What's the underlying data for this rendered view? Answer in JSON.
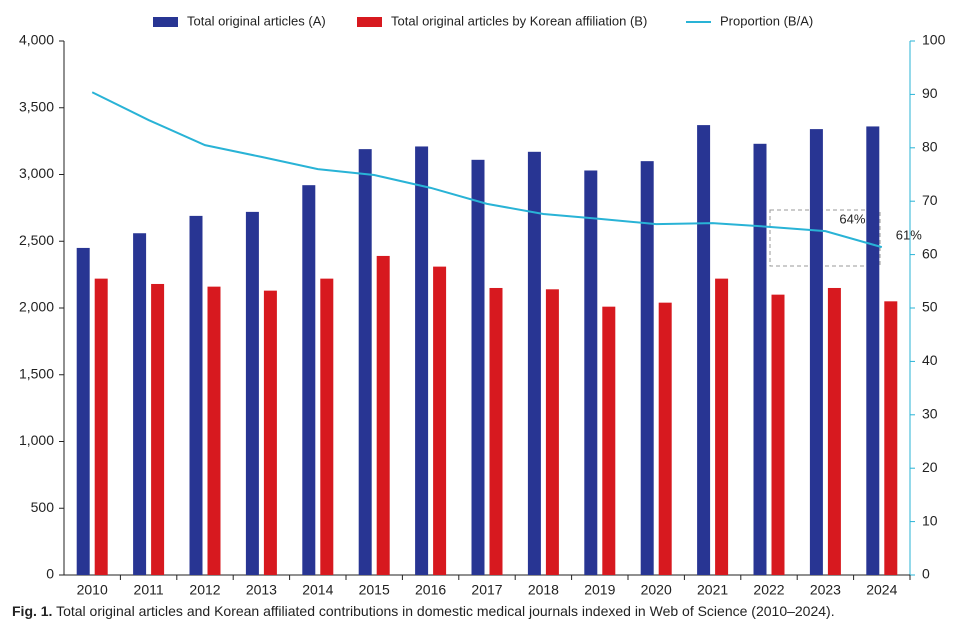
{
  "chart_data": {
    "type": "bar",
    "categories": [
      "2010",
      "2011",
      "2012",
      "2013",
      "2014",
      "2015",
      "2016",
      "2017",
      "2018",
      "2019",
      "2020",
      "2021",
      "2022",
      "2023",
      "2024"
    ],
    "series": [
      {
        "name": "Total original articles (A)",
        "type": "bar",
        "color": "#283593",
        "values": [
          2450,
          2560,
          2690,
          2720,
          2920,
          3190,
          3210,
          3110,
          3170,
          3030,
          3100,
          3370,
          3230,
          3340,
          3360
        ]
      },
      {
        "name": "Total original articles by Korean affiliation (B)",
        "type": "bar",
        "color": "#d7191f",
        "values": [
          2220,
          2180,
          2160,
          2130,
          2220,
          2390,
          2310,
          2150,
          2140,
          2010,
          2040,
          2220,
          2100,
          2150,
          2050
        ]
      },
      {
        "name": "Proportion (B/A)",
        "type": "line",
        "axis": "y2",
        "color": "#29b3d6",
        "values": [
          90.4,
          85.2,
          80.5,
          78.3,
          76.0,
          74.9,
          72.5,
          69.5,
          67.6,
          66.7,
          65.7,
          65.9,
          65.2,
          64.4,
          61.4
        ],
        "value_labels": [
          null,
          null,
          null,
          null,
          null,
          null,
          null,
          null,
          null,
          null,
          null,
          null,
          null,
          "64%",
          "61%"
        ]
      }
    ],
    "ylim": [
      0,
      4000
    ],
    "yticks": [
      0,
      500,
      {
        "value": 1000,
        "label": "1,000"
      },
      {
        "value": 1500,
        "label": "1,500"
      },
      {
        "value": 2000,
        "label": "2,000"
      },
      {
        "value": 2500,
        "label": "2,500"
      },
      {
        "value": 3000,
        "label": "3,000"
      },
      {
        "value": 3500,
        "label": "3,500"
      },
      {
        "value": 4000,
        "label": "4,000"
      }
    ],
    "y2lim": [
      0,
      100
    ],
    "y2ticks": [
      0,
      10,
      20,
      30,
      40,
      50,
      60,
      70,
      80,
      90,
      100
    ],
    "grid": false,
    "caption": {
      "label": "Fig. 1.",
      "text": "Total original articles and Korean affiliated contributions in domestic medical journals indexed in Web of Science (2010–2024)."
    }
  }
}
